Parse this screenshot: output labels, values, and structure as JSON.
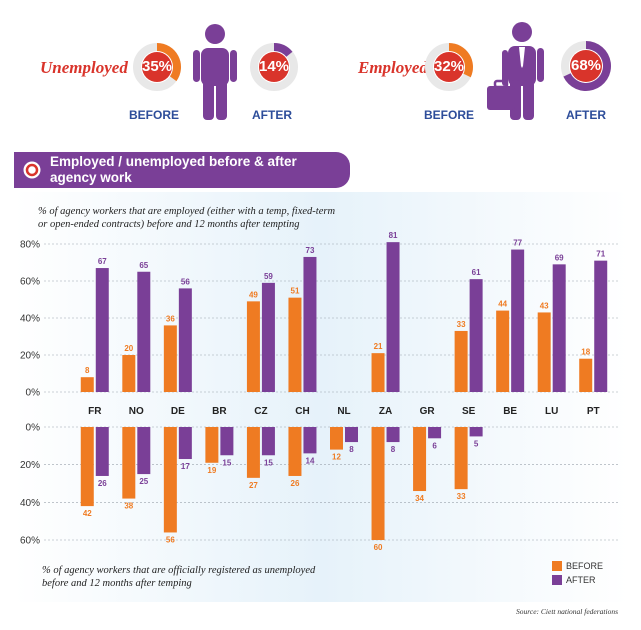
{
  "colors": {
    "before": "#ef7b22",
    "after": "#7a3f97",
    "accent_red": "#d9342b",
    "caption_blue": "#2d4d9a",
    "ring_track": "#e8e8e8",
    "chart_bg": "#e9f4fb"
  },
  "kpis": {
    "unemployed": {
      "label": "Unemployed",
      "before_pct": "35%",
      "after_pct": "14%",
      "before_value": 35,
      "after_value": 14,
      "before_caption": "BEFORE",
      "after_caption": "AFTER",
      "icon": "person-icon"
    },
    "employed": {
      "label": "Employed",
      "before_pct": "32%",
      "after_pct": "68%",
      "before_value": 32,
      "after_value": 68,
      "before_caption": "BEFORE",
      "after_caption": "AFTER",
      "icon": "businessman-briefcase-icon"
    }
  },
  "banner": {
    "title_line1": "Employed / unemployed before & after",
    "title_line2": "agency work"
  },
  "descriptions": {
    "top_line1": "% of agency workers that are employed (either with a temp, fixed-term",
    "top_line2": "or open-ended contracts) before and 12 months after tempting",
    "bottom_line1": "% of agency workers that are officially registered as unemployed",
    "bottom_line2": "before and 12 months after temping"
  },
  "source": "Source: Ciett national federations",
  "chart_data": {
    "type": "bar",
    "categories": [
      "FR",
      "NO",
      "DE",
      "BR",
      "CZ",
      "CH",
      "NL",
      "ZA",
      "GR",
      "SE",
      "BE",
      "LU",
      "PT"
    ],
    "legend": [
      "BEFORE",
      "AFTER"
    ],
    "employed": {
      "ylim": [
        0,
        80
      ],
      "ticks": [
        "80%",
        "60%",
        "40%",
        "20%",
        "0%"
      ],
      "tick_values": [
        80,
        60,
        40,
        20,
        0
      ],
      "series": [
        {
          "name": "BEFORE",
          "values": [
            8,
            20,
            36,
            null,
            49,
            51,
            null,
            21,
            null,
            33,
            44,
            43,
            18
          ]
        },
        {
          "name": "AFTER",
          "values": [
            67,
            65,
            56,
            null,
            59,
            73,
            null,
            81,
            null,
            61,
            77,
            69,
            71
          ]
        }
      ]
    },
    "unemployed": {
      "ylim": [
        0,
        60
      ],
      "ticks": [
        "0%",
        "20%",
        "40%",
        "60%"
      ],
      "tick_values": [
        0,
        20,
        40,
        60
      ],
      "series": [
        {
          "name": "BEFORE",
          "values": [
            42,
            38,
            56,
            19,
            27,
            26,
            12,
            60,
            34,
            33,
            null,
            null,
            null
          ]
        },
        {
          "name": "AFTER",
          "values": [
            26,
            25,
            17,
            15,
            15,
            14,
            8,
            8,
            6,
            5,
            null,
            null,
            null
          ]
        }
      ]
    }
  }
}
